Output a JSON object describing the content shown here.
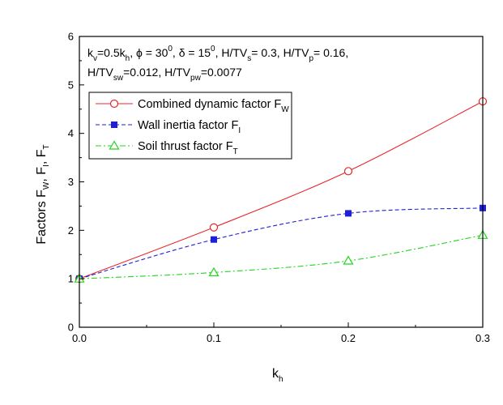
{
  "chart_data": {
    "type": "line",
    "x": [
      0.0,
      0.1,
      0.2,
      0.3
    ],
    "xlim": [
      0.0,
      0.3
    ],
    "ylim": [
      0,
      6
    ],
    "x_ticks": [
      "0.0",
      "0.1",
      "0.2",
      "0.3"
    ],
    "y_ticks": [
      "0",
      "1",
      "2",
      "3",
      "4",
      "5",
      "6"
    ],
    "xlabel": {
      "main": "k",
      "sub": "h"
    },
    "ylabel": {
      "p1": "Factors F",
      "s1": "W",
      "p2": ", F",
      "s2": "I",
      "p3": ", F",
      "s3": "T"
    },
    "annotation": {
      "line1": [
        {
          "t": "k"
        },
        {
          "t": "v",
          "sub": true
        },
        {
          "t": "=0.5k"
        },
        {
          "t": "h",
          "sub": true
        },
        {
          "t": ", ϕ = 30"
        },
        {
          "t": "0",
          "sup": true
        },
        {
          "t": ", δ = 15"
        },
        {
          "t": "0",
          "sup": true
        },
        {
          "t": ", H/TV"
        },
        {
          "t": "s",
          "sub": true
        },
        {
          "t": "= 0.3, H/TV"
        },
        {
          "t": "p",
          "sub": true
        },
        {
          "t": "= 0.16,"
        }
      ],
      "line2": [
        {
          "t": "H/TV"
        },
        {
          "t": "sw",
          "sub": true
        },
        {
          "t": "=0.012, H/TV"
        },
        {
          "t": "pw",
          "sub": true
        },
        {
          "t": "=0.0077"
        }
      ]
    },
    "series": [
      {
        "name_main": "Combined dynamic factor F",
        "name_sub": "W",
        "values": [
          1.0,
          2.06,
          3.22,
          4.66
        ],
        "color": "#e8262b",
        "marker": "circle",
        "dash": "solid"
      },
      {
        "name_main": "Wall inertia factor F",
        "name_sub": "I",
        "values": [
          1.0,
          1.81,
          2.35,
          2.46
        ],
        "color": "#1f1fd6",
        "marker": "square",
        "dash": "dash"
      },
      {
        "name_main": "Soil thrust factor F",
        "name_sub": "T",
        "values": [
          1.0,
          1.13,
          1.37,
          1.9
        ],
        "color": "#22d622",
        "marker": "triangle",
        "dash": "dashdot"
      }
    ],
    "grid": false,
    "legend": "top-left"
  }
}
